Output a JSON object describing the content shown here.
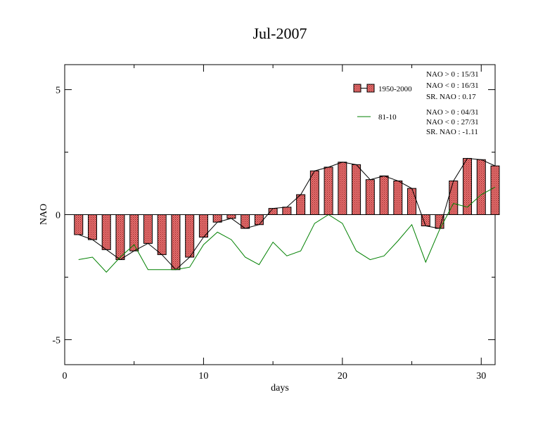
{
  "chart_data": {
    "type": "bar",
    "title": "Jul-2007",
    "xlabel": "days",
    "ylabel": "NAO",
    "xlim": [
      0,
      31
    ],
    "ylim": [
      -6,
      6
    ],
    "x_ticks": [
      0,
      10,
      20,
      30
    ],
    "y_ticks": [
      -5,
      0,
      5
    ],
    "x_tick_labels": [
      "0",
      "10",
      "20",
      "30"
    ],
    "y_tick_labels": [
      "-5",
      "0",
      "5"
    ],
    "days": [
      1,
      2,
      3,
      4,
      5,
      6,
      7,
      8,
      9,
      10,
      11,
      12,
      13,
      14,
      15,
      16,
      17,
      18,
      19,
      20,
      21,
      22,
      23,
      24,
      25,
      26,
      27,
      28,
      29,
      30,
      31
    ],
    "series": [
      {
        "name": "1950-2000",
        "kind": "bar",
        "color": "#e06666",
        "values": [
          -0.8,
          -1.0,
          -1.4,
          -1.8,
          -1.45,
          -1.15,
          -1.6,
          -2.2,
          -1.7,
          -0.9,
          -0.3,
          -0.15,
          -0.55,
          -0.4,
          0.25,
          0.3,
          0.8,
          1.75,
          1.9,
          2.1,
          2.0,
          1.4,
          1.55,
          1.35,
          1.05,
          -0.45,
          -0.55,
          1.35,
          2.25,
          2.2,
          1.95
        ]
      },
      {
        "name": "81-10",
        "kind": "line",
        "color": "#008000",
        "values": [
          -1.8,
          -1.7,
          -2.3,
          -1.7,
          -1.2,
          -2.2,
          -2.2,
          -2.2,
          -2.1,
          -1.2,
          -0.7,
          -1.0,
          -1.7,
          -2.0,
          -1.1,
          -1.65,
          -1.45,
          -0.35,
          0.0,
          -0.35,
          -1.45,
          -1.8,
          -1.65,
          -1.05,
          -0.4,
          -1.9,
          -0.6,
          0.45,
          0.3,
          0.8,
          1.1
        ]
      }
    ],
    "legend_placement": "top-right",
    "stats": [
      {
        "lines": [
          "NAO > 0 :  15/31",
          "NAO < 0 :  16/31",
          "SR. NAO :  0.17"
        ]
      },
      {
        "lines": [
          "NAO > 0 : 04/31",
          "NAO < 0 : 27/31",
          "SR. NAO : -1.11"
        ]
      }
    ]
  }
}
